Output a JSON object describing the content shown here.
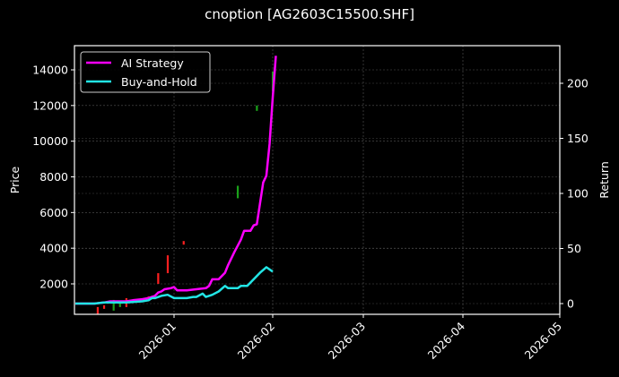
{
  "chart_data": {
    "type": "line",
    "title": "cnoption [AG2603C15500.SHF]",
    "xlabel": "",
    "ylabel_left": "Price",
    "ylabel_right": "Return",
    "x_ticks": [
      "2026-01",
      "2026-02",
      "2026-03",
      "2026-04",
      "2026-05"
    ],
    "y_left_ticks": [
      2000,
      4000,
      6000,
      8000,
      10000,
      12000,
      14000
    ],
    "y_right_ticks": [
      0,
      50,
      100,
      150,
      200
    ],
    "ylim_left": [
      300,
      15300
    ],
    "ylim_right": [
      -10,
      237
    ],
    "grid": true,
    "legend_position": "upper left",
    "series": [
      {
        "name": "AI Strategy",
        "color": "#ff00ff",
        "axis": "right",
        "points": [
          [
            "2025-12-01",
            0
          ],
          [
            "2025-12-07",
            0
          ],
          [
            "2025-12-10",
            1
          ],
          [
            "2025-12-12",
            2
          ],
          [
            "2025-12-17",
            2
          ],
          [
            "2025-12-19",
            3
          ],
          [
            "2025-12-22",
            4
          ],
          [
            "2025-12-24",
            5
          ],
          [
            "2025-12-25",
            6
          ],
          [
            "2025-12-26",
            7
          ],
          [
            "2025-12-27",
            10
          ],
          [
            "2025-12-28",
            11
          ],
          [
            "2025-12-29",
            13
          ],
          [
            "2025-12-31",
            14
          ],
          [
            "2026-01-01",
            15
          ],
          [
            "2026-01-02",
            12
          ],
          [
            "2026-01-05",
            12
          ],
          [
            "2026-01-08",
            13
          ],
          [
            "2026-01-11",
            14
          ],
          [
            "2026-01-12",
            16
          ],
          [
            "2026-01-13",
            22
          ],
          [
            "2026-01-15",
            22
          ],
          [
            "2026-01-17",
            28
          ],
          [
            "2026-01-18",
            35
          ],
          [
            "2026-01-20",
            47
          ],
          [
            "2026-01-22",
            58
          ],
          [
            "2026-01-23",
            66
          ],
          [
            "2026-01-25",
            66
          ],
          [
            "2026-01-26",
            71
          ],
          [
            "2026-01-27",
            72
          ],
          [
            "2026-01-29",
            110
          ],
          [
            "2026-01-30",
            116
          ],
          [
            "2026-01-31",
            145
          ],
          [
            "2026-02-01",
            187
          ],
          [
            "2026-02-02",
            225
          ]
        ]
      },
      {
        "name": "Buy-and-Hold",
        "color": "#22e5e5",
        "axis": "right",
        "points": [
          [
            "2025-12-01",
            0
          ],
          [
            "2025-12-07",
            0
          ],
          [
            "2025-12-10",
            1
          ],
          [
            "2025-12-12",
            1
          ],
          [
            "2025-12-17",
            1
          ],
          [
            "2025-12-22",
            2
          ],
          [
            "2025-12-24",
            3
          ],
          [
            "2025-12-25",
            5
          ],
          [
            "2025-12-26",
            5
          ],
          [
            "2025-12-28",
            7
          ],
          [
            "2025-12-30",
            8
          ],
          [
            "2026-01-01",
            5
          ],
          [
            "2026-01-05",
            5
          ],
          [
            "2026-01-07",
            6
          ],
          [
            "2026-01-08",
            6
          ],
          [
            "2026-01-10",
            9
          ],
          [
            "2026-01-11",
            6
          ],
          [
            "2026-01-13",
            8
          ],
          [
            "2026-01-15",
            11
          ],
          [
            "2026-01-17",
            16
          ],
          [
            "2026-01-18",
            14
          ],
          [
            "2026-01-21",
            14
          ],
          [
            "2026-01-22",
            16
          ],
          [
            "2026-01-24",
            16
          ],
          [
            "2026-01-27",
            25
          ],
          [
            "2026-01-28",
            28
          ],
          [
            "2026-01-30",
            33
          ],
          [
            "2026-02-01",
            29
          ]
        ]
      }
    ],
    "candles": [
      {
        "date": "2025-12-08",
        "low": 300,
        "high": 700,
        "color": "#ff2020"
      },
      {
        "date": "2025-12-10",
        "low": 600,
        "high": 800,
        "color": "#ff2020"
      },
      {
        "date": "2025-12-13",
        "low": 500,
        "high": 1100,
        "color": "#1aa11a"
      },
      {
        "date": "2025-12-15",
        "low": 700,
        "high": 1000,
        "color": "#1aa11a"
      },
      {
        "date": "2025-12-17",
        "low": 700,
        "high": 1200,
        "color": "#ff2020"
      },
      {
        "date": "2025-12-24",
        "low": 1100,
        "high": 1300,
        "color": "#ff2020"
      },
      {
        "date": "2025-12-27",
        "low": 2000,
        "high": 2600,
        "color": "#ff2020"
      },
      {
        "date": "2025-12-30",
        "low": 2600,
        "high": 3600,
        "color": "#ff2020"
      },
      {
        "date": "2026-01-04",
        "low": 4200,
        "high": 4400,
        "color": "#ff2020"
      },
      {
        "date": "2026-01-21",
        "low": 6800,
        "high": 7500,
        "color": "#1aa11a"
      },
      {
        "date": "2026-01-27",
        "low": 11700,
        "high": 12000,
        "color": "#1aa11a"
      },
      {
        "date": "2026-02-01",
        "low": 12800,
        "high": 13900,
        "color": "#1aa11a"
      }
    ]
  },
  "legend": {
    "items": [
      {
        "label": "AI Strategy",
        "color": "#ff00ff"
      },
      {
        "label": "Buy-and-Hold",
        "color": "#22e5e5"
      }
    ]
  }
}
